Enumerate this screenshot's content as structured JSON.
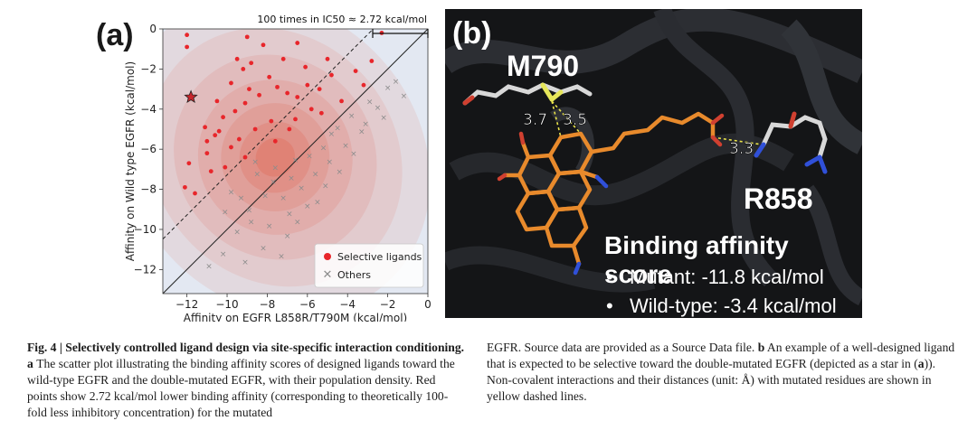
{
  "panel_a": {
    "label": "(a)",
    "top_annotation": "100 times in IC50 ≈ 2.72 kcal/mol",
    "legend": {
      "selective": "Selective ligands",
      "others": "Others"
    },
    "colors": {
      "selective": "#e8262b",
      "others": "#8c8c8c",
      "background": "#e3e8f2",
      "density": "#e0563f"
    }
  },
  "chart_data": {
    "type": "scatter",
    "xlabel": "Affinity on EGFR L858R/T790M (kcal/mol)",
    "ylabel": "Affinity on Wild type EGFR (kcal/mol)",
    "xlim": [
      -13.2,
      0
    ],
    "ylim": [
      -13.2,
      0
    ],
    "xticks": [
      -12,
      -10,
      -8,
      -6,
      -4,
      -2,
      0
    ],
    "yticks": [
      0,
      -2,
      -4,
      -6,
      -8,
      -10,
      -12
    ],
    "grid": false,
    "legend_position": "bottom-right",
    "lines": [
      {
        "name": "y = x",
        "style": "solid",
        "offset": 0
      },
      {
        "name": "y = x + 2.72",
        "style": "dashed",
        "offset": 2.72
      }
    ],
    "star": {
      "x": -11.8,
      "y": -3.4
    },
    "series": [
      {
        "name": "Selective ligands",
        "values": [
          [
            -12.0,
            -0.3
          ],
          [
            -12.0,
            -0.9
          ],
          [
            -11.9,
            -6.7
          ],
          [
            -12.1,
            -7.9
          ],
          [
            -11.6,
            -8.2
          ],
          [
            -11.1,
            -4.9
          ],
          [
            -11.0,
            -5.6
          ],
          [
            -10.6,
            -5.3
          ],
          [
            -10.8,
            -7.1
          ],
          [
            -10.5,
            -3.6
          ],
          [
            -9.8,
            -2.7
          ],
          [
            -9.5,
            -1.5
          ],
          [
            -9.2,
            -2.0
          ],
          [
            -9.0,
            -0.4
          ],
          [
            -8.8,
            -1.7
          ],
          [
            -8.2,
            -0.8
          ],
          [
            -7.2,
            -1.5
          ],
          [
            -6.5,
            -0.7
          ],
          [
            -6.1,
            -1.9
          ],
          [
            -7.5,
            -2.9
          ],
          [
            -8.4,
            -3.3
          ],
          [
            -9.1,
            -3.7
          ],
          [
            -10.2,
            -4.4
          ],
          [
            -7.0,
            -3.2
          ],
          [
            -6.5,
            -3.4
          ],
          [
            -6.0,
            -2.8
          ],
          [
            -5.4,
            -3.0
          ],
          [
            -5.0,
            -1.5
          ],
          [
            -4.8,
            -2.3
          ],
          [
            -5.8,
            -4.0
          ],
          [
            -4.3,
            -3.6
          ],
          [
            -3.6,
            -2.1
          ],
          [
            -3.2,
            -2.8
          ],
          [
            -2.8,
            -1.6
          ],
          [
            -2.3,
            -0.2
          ],
          [
            -7.8,
            -4.6
          ],
          [
            -8.6,
            -5.0
          ],
          [
            -9.4,
            -5.5
          ],
          [
            -9.8,
            -5.9
          ],
          [
            -9.1,
            -6.4
          ],
          [
            -10.1,
            -6.9
          ],
          [
            -7.6,
            -5.6
          ],
          [
            -6.9,
            -5.0
          ],
          [
            -8.9,
            -3.0
          ],
          [
            -7.9,
            -2.4
          ],
          [
            -9.6,
            -4.1
          ],
          [
            -10.4,
            -5.1
          ],
          [
            -11.0,
            -6.2
          ],
          [
            -6.6,
            -4.5
          ],
          [
            -5.3,
            -4.2
          ]
        ]
      },
      {
        "name": "Others",
        "values": [
          [
            -8.5,
            -7.2
          ],
          [
            -8.1,
            -8.3
          ],
          [
            -7.7,
            -7.6
          ],
          [
            -7.2,
            -8.4
          ],
          [
            -6.6,
            -6.5
          ],
          [
            -6.3,
            -7.9
          ],
          [
            -5.9,
            -6.3
          ],
          [
            -5.6,
            -7.2
          ],
          [
            -5.2,
            -5.9
          ],
          [
            -4.9,
            -6.6
          ],
          [
            -4.5,
            -4.9
          ],
          [
            -4.1,
            -5.8
          ],
          [
            -3.8,
            -4.3
          ],
          [
            -3.3,
            -5.1
          ],
          [
            -2.9,
            -3.6
          ],
          [
            -2.5,
            -3.9
          ],
          [
            -2.0,
            -2.9
          ],
          [
            -1.6,
            -2.6
          ],
          [
            -1.2,
            -3.3
          ],
          [
            -6.9,
            -9.2
          ],
          [
            -7.9,
            -9.8
          ],
          [
            -8.8,
            -9.6
          ],
          [
            -9.5,
            -10.1
          ],
          [
            -10.2,
            -11.2
          ],
          [
            -10.9,
            -11.8
          ],
          [
            -9.3,
            -8.4
          ],
          [
            -8.9,
            -9.0
          ],
          [
            -7.0,
            -10.3
          ],
          [
            -6.5,
            -9.6
          ],
          [
            -8.2,
            -10.9
          ],
          [
            -7.3,
            -11.3
          ],
          [
            -9.1,
            -11.6
          ],
          [
            -6.0,
            -8.8
          ],
          [
            -5.1,
            -7.8
          ],
          [
            -4.4,
            -7.1
          ],
          [
            -3.7,
            -6.2
          ],
          [
            -3.1,
            -4.7
          ],
          [
            -10.1,
            -9.1
          ],
          [
            -9.8,
            -8.1
          ],
          [
            -8.6,
            -6.6
          ],
          [
            -7.6,
            -6.9
          ],
          [
            -6.8,
            -7.4
          ],
          [
            -5.5,
            -8.6
          ],
          [
            -4.8,
            -5.2
          ],
          [
            -2.2,
            -4.4
          ]
        ]
      }
    ]
  },
  "panel_b": {
    "label": "(b)",
    "residue_1": "M790",
    "residue_2": "R858",
    "distance_1": "3.7",
    "distance_2": "3.5",
    "distance_3": "3.3",
    "title": "Binding affinity score",
    "bullet": "•",
    "items": [
      "Mutant: -11.8 kcal/mol",
      "Wild-type: -3.4 kcal/mol"
    ]
  },
  "caption": {
    "fig_label": "Fig. 4 | ",
    "title": "Selectively controlled ligand design via site-specific interaction con­ditioning.",
    "a_label": " a ",
    "a_text": "The scatter plot illustrating the binding affinity scores of designed ligands toward the wild-type EGFR and the double-mutated EGFR, with their population density. Red points show 2.72 kcal/mol lower binding affinity (corre­sponding to theoretically 100-fold less inhibitory concentration) for the mutated",
    "col2_text1": "EGFR. Source data are provided as a Source Data file. ",
    "b_label": "b",
    "col2_text2": " An example of a well-designed ligand that is expected to be selective toward the double-mutated EGFR (depicted as a star in (",
    "a_ref": "a",
    "col2_text3": ")). Non-covalent interactions and their distances (unit: Å) with mutated residues are shown in yellow dashed lines."
  }
}
